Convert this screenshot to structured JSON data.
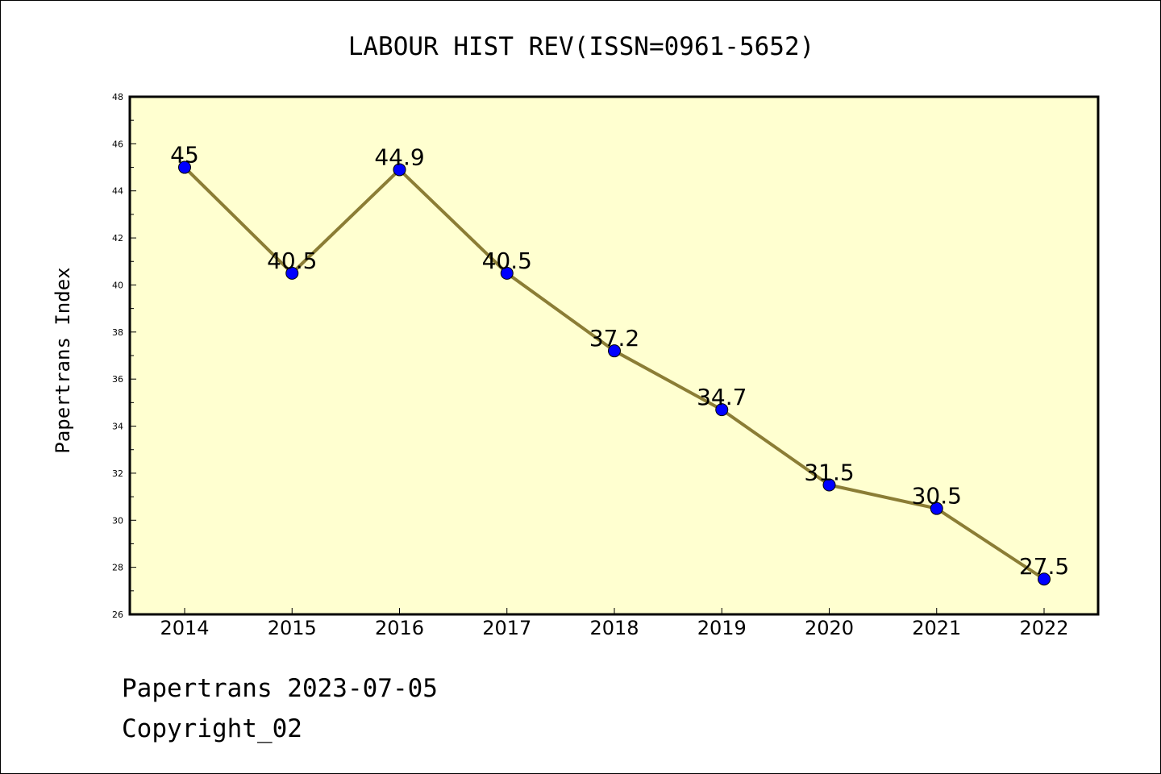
{
  "chart_data": {
    "type": "line",
    "title": "LABOUR HIST REV(ISSN=0961-5652)",
    "xlabel": "",
    "ylabel": "Papertrans Index",
    "categories": [
      "2014",
      "2015",
      "2016",
      "2017",
      "2018",
      "2019",
      "2020",
      "2021",
      "2022"
    ],
    "series": [
      {
        "values": [
          45,
          40.5,
          44.9,
          40.5,
          37.2,
          34.7,
          31.5,
          30.5,
          27.5
        ],
        "data_labels": [
          "45",
          "40.5",
          "44.9",
          "40.5",
          "37.2",
          "34.7",
          "31.5",
          "30.5",
          "27.5"
        ]
      }
    ],
    "ylim": [
      26,
      48
    ],
    "yticks": [
      26,
      28,
      30,
      32,
      34,
      36,
      38,
      40,
      42,
      44,
      46,
      48
    ],
    "grid": false,
    "colors": {
      "plot_background": "#ffffd0",
      "line": "#8b7d35",
      "marker": "#0000ff"
    }
  },
  "footer": {
    "line1": "Papertrans 2023-07-05",
    "line2": "Copyright_02"
  }
}
